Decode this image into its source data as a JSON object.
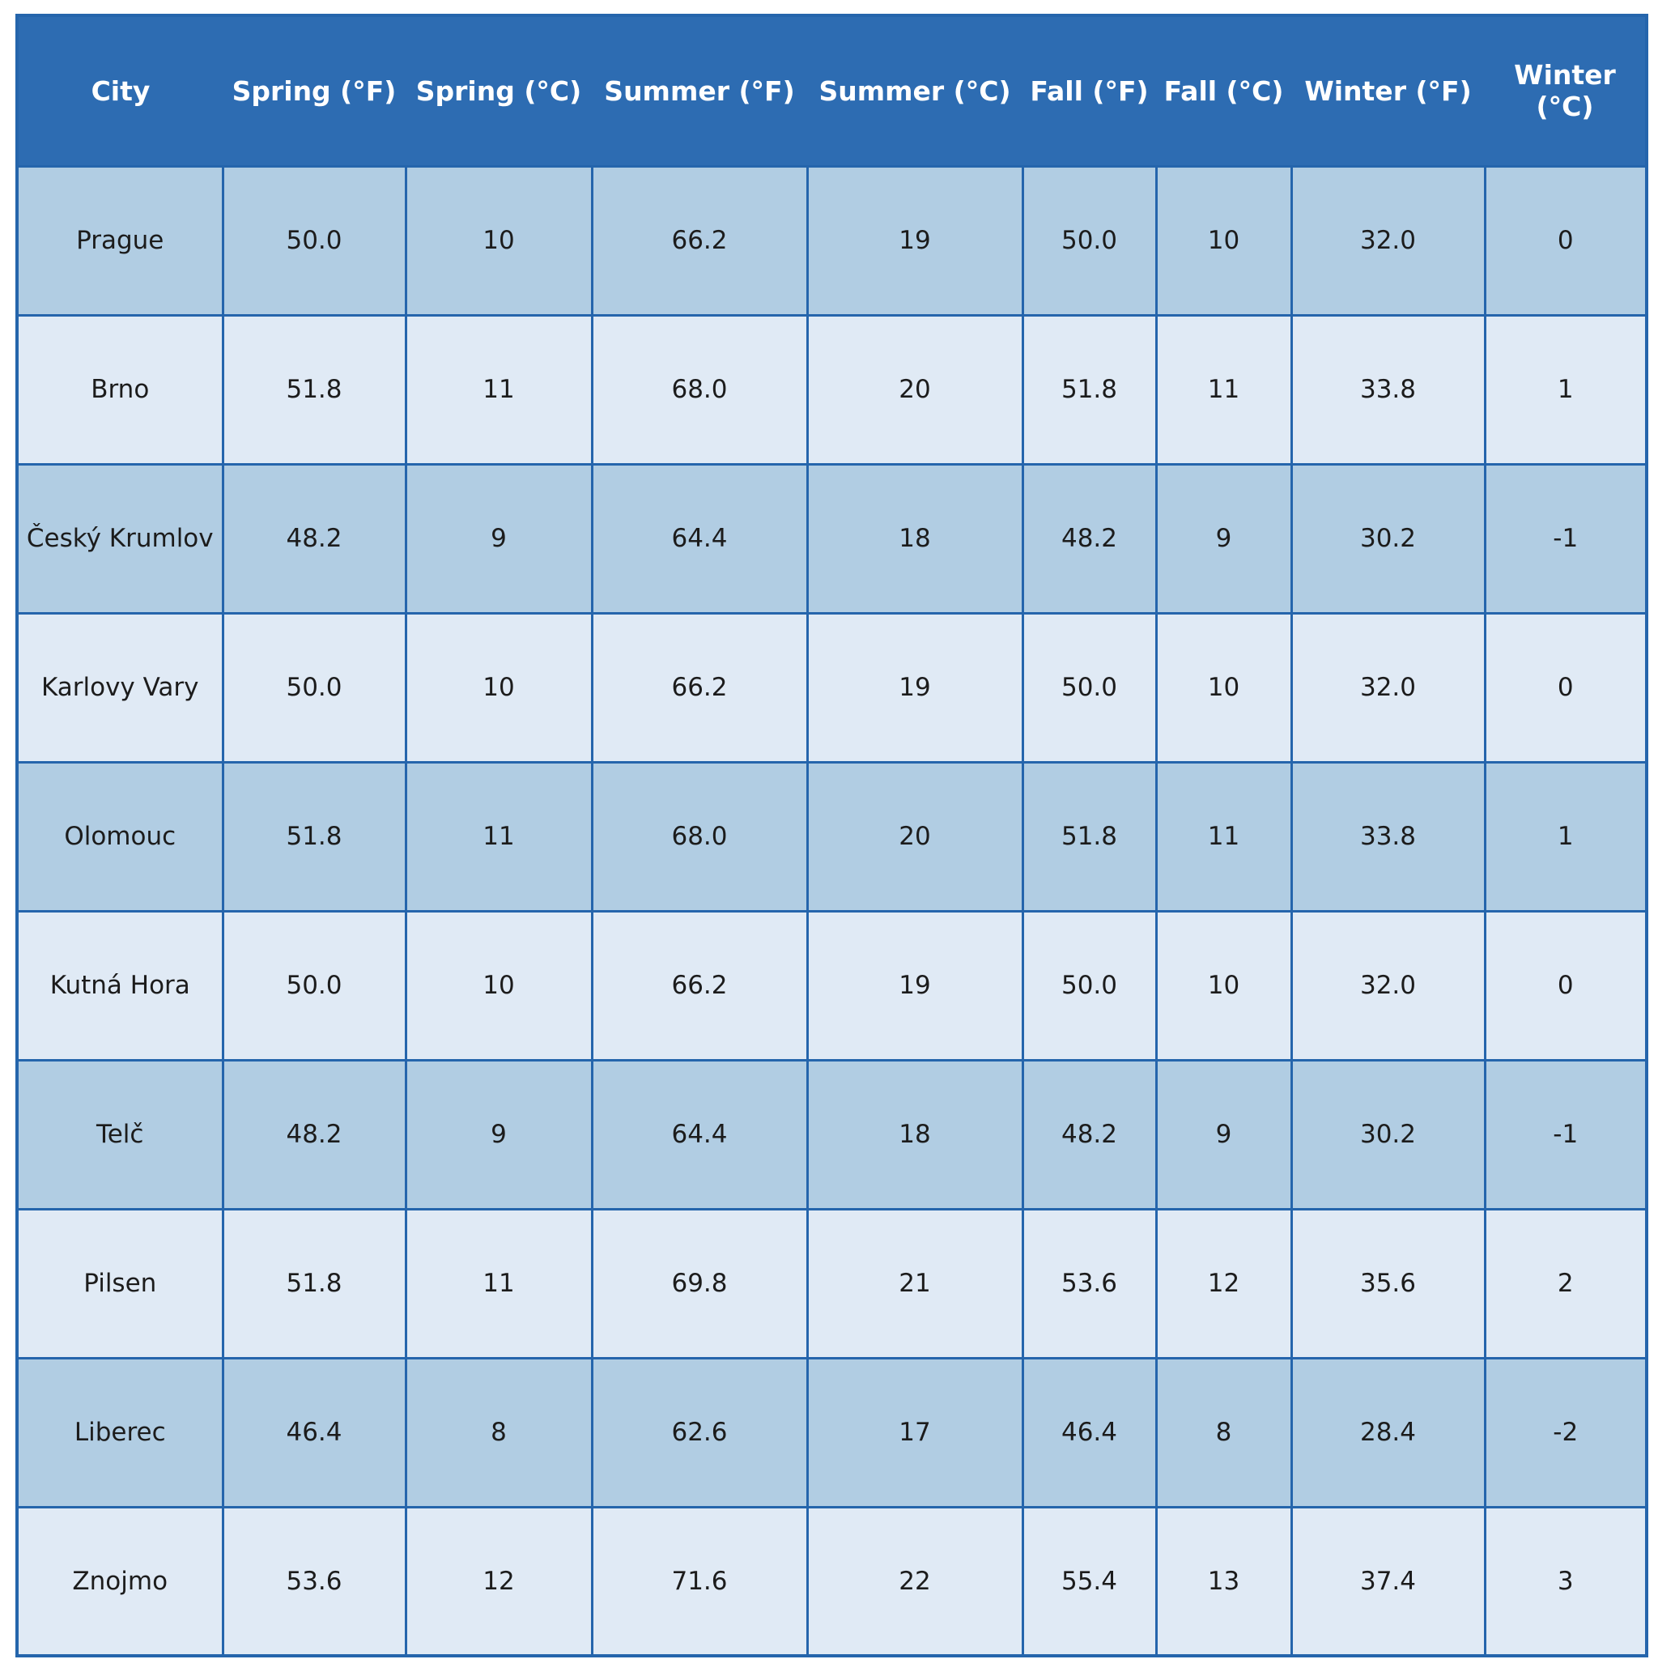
{
  "table": {
    "columns": [
      "City",
      "Spring (°F)",
      "Spring (°C)",
      "Summer (°F)",
      "Summer (°C)",
      "Fall (°F)",
      "Fall (°C)",
      "Winter (°F)",
      "Winter (°C)"
    ],
    "rows": [
      [
        "Prague",
        "50.0",
        "10",
        "66.2",
        "19",
        "50.0",
        "10",
        "32.0",
        "0"
      ],
      [
        "Brno",
        "51.8",
        "11",
        "68.0",
        "20",
        "51.8",
        "11",
        "33.8",
        "1"
      ],
      [
        "Český Krumlov",
        "48.2",
        "9",
        "64.4",
        "18",
        "48.2",
        "9",
        "30.2",
        "-1"
      ],
      [
        "Karlovy Vary",
        "50.0",
        "10",
        "66.2",
        "19",
        "50.0",
        "10",
        "32.0",
        "0"
      ],
      [
        "Olomouc",
        "51.8",
        "11",
        "68.0",
        "20",
        "51.8",
        "11",
        "33.8",
        "1"
      ],
      [
        "Kutná Hora",
        "50.0",
        "10",
        "66.2",
        "19",
        "50.0",
        "10",
        "32.0",
        "0"
      ],
      [
        "Telč",
        "48.2",
        "9",
        "64.4",
        "18",
        "48.2",
        "9",
        "30.2",
        "-1"
      ],
      [
        "Pilsen",
        "51.8",
        "11",
        "69.8",
        "21",
        "53.6",
        "12",
        "35.6",
        "2"
      ],
      [
        "Liberec",
        "46.4",
        "8",
        "62.6",
        "17",
        "46.4",
        "8",
        "28.4",
        "-2"
      ],
      [
        "Znojmo",
        "53.6",
        "12",
        "71.6",
        "22",
        "55.4",
        "13",
        "37.4",
        "3"
      ]
    ]
  },
  "colors": {
    "header_bg": "#2d6cb2",
    "header_text": "#ffffff",
    "row_odd_bg": "#b1cde3",
    "row_even_bg": "#e0eaf5",
    "border": "#2565ac",
    "cell_text": "#1c1c1c",
    "page_bg": "#ffffff"
  },
  "chart_data": {
    "type": "table",
    "title": "",
    "columns": [
      "City",
      "Spring (°F)",
      "Spring (°C)",
      "Summer (°F)",
      "Summer (°C)",
      "Fall (°F)",
      "Fall (°C)",
      "Winter (°F)",
      "Winter (°C)"
    ],
    "rows": [
      [
        "Prague",
        50.0,
        10,
        66.2,
        19,
        50.0,
        10,
        32.0,
        0
      ],
      [
        "Brno",
        51.8,
        11,
        68.0,
        20,
        51.8,
        11,
        33.8,
        1
      ],
      [
        "Český Krumlov",
        48.2,
        9,
        64.4,
        18,
        48.2,
        9,
        30.2,
        -1
      ],
      [
        "Karlovy Vary",
        50.0,
        10,
        66.2,
        19,
        50.0,
        10,
        32.0,
        0
      ],
      [
        "Olomouc",
        51.8,
        11,
        68.0,
        20,
        51.8,
        11,
        33.8,
        1
      ],
      [
        "Kutná Hora",
        50.0,
        10,
        66.2,
        19,
        50.0,
        10,
        32.0,
        0
      ],
      [
        "Telč",
        48.2,
        9,
        64.4,
        18,
        48.2,
        9,
        30.2,
        -1
      ],
      [
        "Pilsen",
        51.8,
        11,
        69.8,
        21,
        53.6,
        12,
        35.6,
        2
      ],
      [
        "Liberec",
        46.4,
        8,
        62.6,
        17,
        46.4,
        8,
        28.4,
        -2
      ],
      [
        "Znojmo",
        53.6,
        12,
        71.6,
        22,
        55.4,
        13,
        37.4,
        3
      ]
    ],
    "layout": {
      "header_style": "solid blue band, white bold text, no internal vertical rules",
      "body_style": "alternating row shading starting dark, blue grid lines",
      "grid": true
    }
  }
}
